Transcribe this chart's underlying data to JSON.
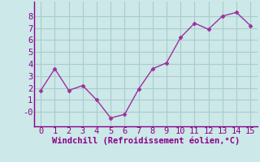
{
  "x": [
    0,
    1,
    2,
    3,
    4,
    5,
    6,
    7,
    8,
    9,
    10,
    11,
    12,
    13,
    14,
    15
  ],
  "y": [
    1.8,
    3.6,
    1.8,
    2.2,
    1.0,
    -0.5,
    -0.2,
    1.9,
    3.6,
    4.1,
    6.2,
    7.4,
    6.9,
    8.0,
    8.3,
    7.2
  ],
  "line_color": "#9b30a0",
  "marker": "D",
  "marker_size": 2.5,
  "xlabel": "Windchill (Refroidissement éolien,°C)",
  "xlim": [
    -0.5,
    15.5
  ],
  "ylim": [
    -1.2,
    9.2
  ],
  "yticks": [
    0,
    1,
    2,
    3,
    4,
    5,
    6,
    7,
    8
  ],
  "ytick_labels": [
    "-0",
    "1",
    "2",
    "3",
    "4",
    "5",
    "6",
    "7",
    "8"
  ],
  "xticks": [
    0,
    1,
    2,
    3,
    4,
    5,
    6,
    7,
    8,
    9,
    10,
    11,
    12,
    13,
    14,
    15
  ],
  "bg_color": "#cce8e8",
  "grid_color": "#aacccc",
  "label_color": "#880088",
  "tick_color": "#880088",
  "spine_color": "#880088",
  "linewidth": 1.0,
  "xlabel_fontsize": 7.5,
  "tick_fontsize": 7.5
}
